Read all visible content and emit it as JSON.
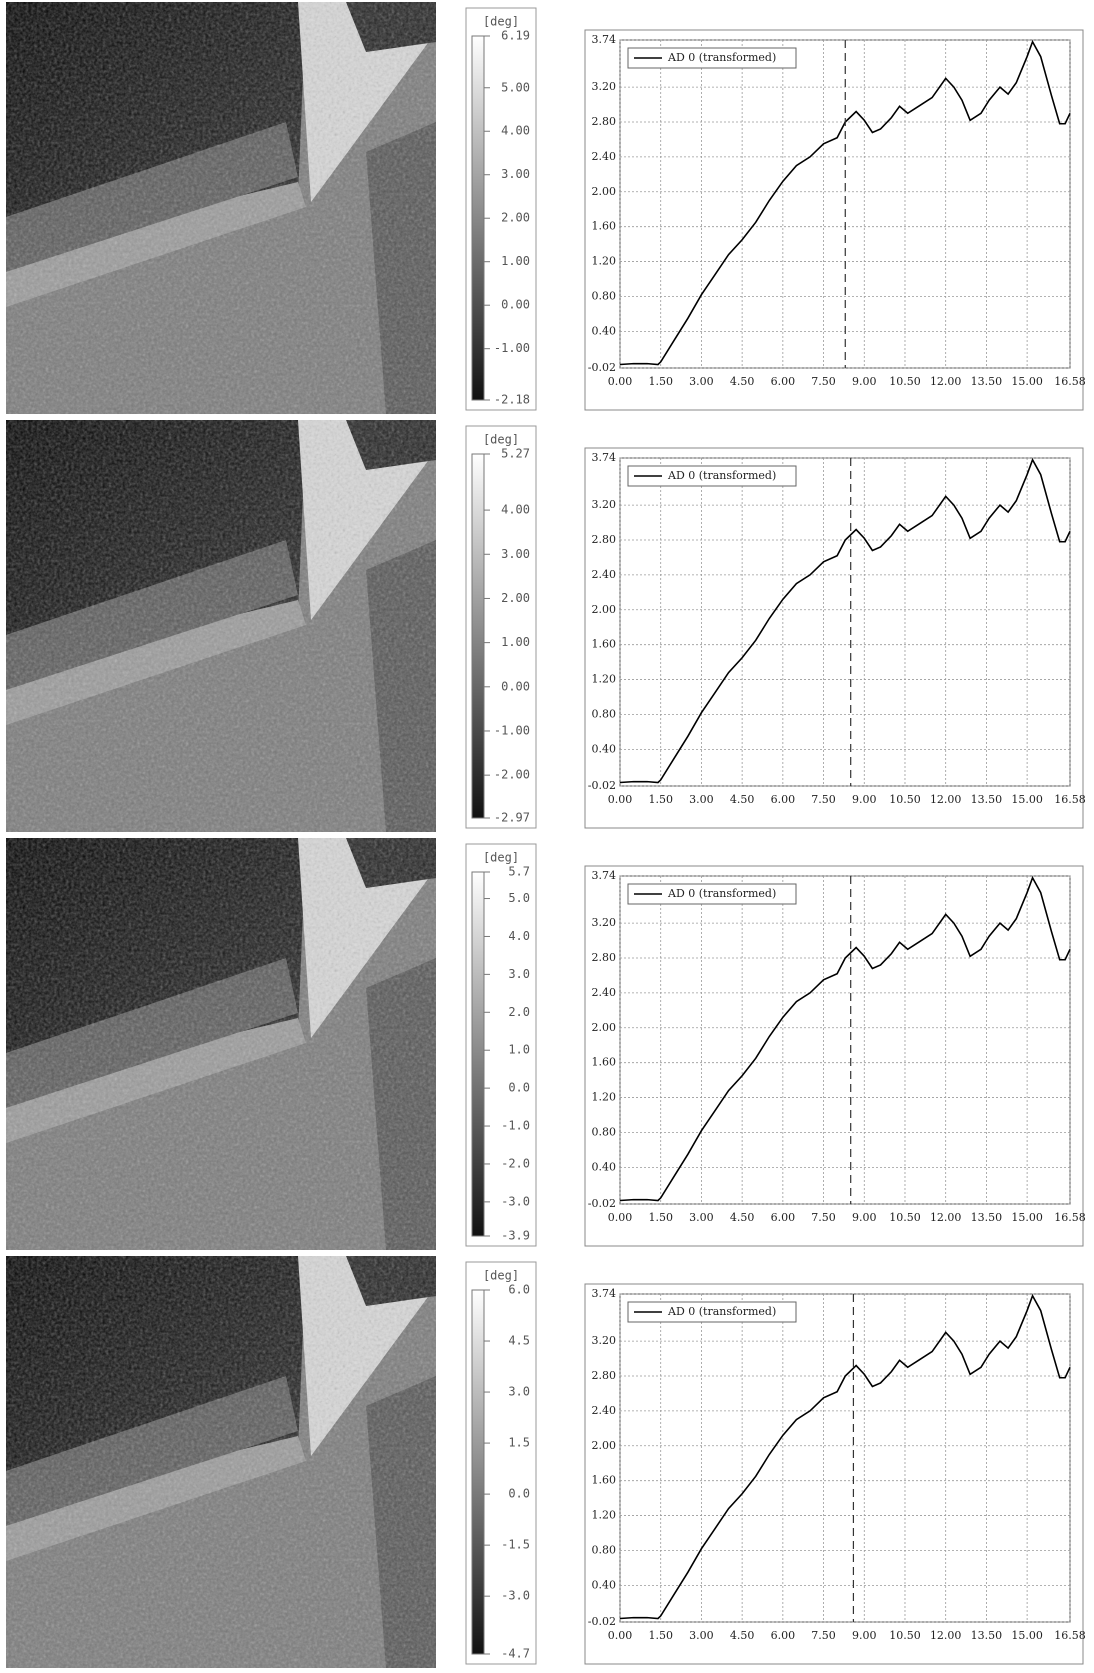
{
  "chart_data": [
    {
      "type": "colorbar",
      "title": "[deg]",
      "ylim": [
        -2.18,
        6.19
      ],
      "yticks": [
        6.19,
        {
          "value": 5,
          "label": "5.00"
        },
        {
          "value": 4,
          "label": "4.00"
        },
        {
          "value": 3,
          "label": "3.00"
        },
        {
          "value": 2,
          "label": "2.00"
        },
        {
          "value": 1,
          "label": "1.00"
        },
        {
          "value": 0,
          "label": "0.00"
        },
        {
          "value": -1,
          "label": "-1.00"
        },
        -2.18
      ]
    },
    {
      "type": "line",
      "x": [
        0,
        0.5,
        1,
        1.4,
        1.5,
        2,
        2.5,
        3,
        3.5,
        4,
        4.5,
        5,
        5.5,
        6,
        6.5,
        7,
        7.5,
        8,
        8.3,
        8.7,
        9,
        9.3,
        9.6,
        10,
        10.3,
        10.6,
        11,
        11.5,
        12,
        12.3,
        12.6,
        12.9,
        13.3,
        13.6,
        14,
        14.3,
        14.6,
        15,
        15.2,
        15.5,
        15.9,
        16.2,
        16.4,
        16.58
      ],
      "series": [
        {
          "name": "AD 0 (transformed)",
          "color": "#000000",
          "values": [
            0.02,
            0.03,
            0.03,
            0.02,
            0.05,
            0.3,
            0.55,
            0.82,
            1.05,
            1.28,
            1.45,
            1.65,
            1.9,
            2.12,
            2.3,
            2.4,
            2.55,
            2.62,
            2.8,
            2.92,
            2.82,
            2.68,
            2.72,
            2.85,
            2.98,
            2.9,
            2.98,
            3.08,
            3.3,
            3.2,
            3.05,
            2.82,
            2.9,
            3.05,
            3.2,
            3.12,
            3.25,
            3.55,
            3.72,
            3.55,
            3.1,
            2.78,
            2.78,
            2.9
          ]
        }
      ],
      "xlim": [
        0,
        16.58
      ],
      "xticks": [
        {
          "value": 0,
          "label": "0.00"
        },
        {
          "value": 1.5,
          "label": "1.50"
        },
        {
          "value": 3,
          "label": "3.00"
        },
        {
          "value": 4.5,
          "label": "4.50"
        },
        {
          "value": 6,
          "label": "6.00"
        },
        {
          "value": 7.5,
          "label": "7.50"
        },
        {
          "value": 9,
          "label": "9.00"
        },
        {
          "value": 10.5,
          "label": "10.50"
        },
        {
          "value": 12,
          "label": "12.00"
        },
        {
          "value": 13.5,
          "label": "13.50"
        },
        {
          "value": 15,
          "label": "15.00"
        },
        16.58
      ],
      "ylim": [
        -0.02,
        3.74
      ],
      "yticks": [
        -0.02,
        {
          "value": 0.4,
          "label": "0.40"
        },
        {
          "value": 0.8,
          "label": "0.80"
        },
        {
          "value": 1.2,
          "label": "1.20"
        },
        {
          "value": 1.6,
          "label": "1.60"
        },
        {
          "value": 2,
          "label": "2.00"
        },
        {
          "value": 2.4,
          "label": "2.40"
        },
        {
          "value": 2.8,
          "label": "2.80"
        },
        {
          "value": 3.2,
          "label": "3.20"
        },
        3.74
      ],
      "grid": true,
      "legend": "upper left",
      "marker_x": 8.3
    },
    {
      "type": "colorbar",
      "title": "[deg]",
      "ylim": [
        -2.97,
        5.27
      ],
      "yticks": [
        5.27,
        {
          "value": 4,
          "label": "4.00"
        },
        {
          "value": 3,
          "label": "3.00"
        },
        {
          "value": 2,
          "label": "2.00"
        },
        {
          "value": 1,
          "label": "1.00"
        },
        {
          "value": 0,
          "label": "0.00"
        },
        {
          "value": -1,
          "label": "-1.00"
        },
        {
          "value": -2,
          "label": "-2.00"
        },
        -2.97
      ]
    },
    {
      "type": "line",
      "x": [
        0,
        0.5,
        1,
        1.4,
        1.5,
        2,
        2.5,
        3,
        3.5,
        4,
        4.5,
        5,
        5.5,
        6,
        6.5,
        7,
        7.5,
        8,
        8.3,
        8.7,
        9,
        9.3,
        9.6,
        10,
        10.3,
        10.6,
        11,
        11.5,
        12,
        12.3,
        12.6,
        12.9,
        13.3,
        13.6,
        14,
        14.3,
        14.6,
        15,
        15.2,
        15.5,
        15.9,
        16.2,
        16.4,
        16.58
      ],
      "series": [
        {
          "name": "AD 0 (transformed)",
          "color": "#000000",
          "values": [
            0.02,
            0.03,
            0.03,
            0.02,
            0.05,
            0.3,
            0.55,
            0.82,
            1.05,
            1.28,
            1.45,
            1.65,
            1.9,
            2.12,
            2.3,
            2.4,
            2.55,
            2.62,
            2.8,
            2.92,
            2.82,
            2.68,
            2.72,
            2.85,
            2.98,
            2.9,
            2.98,
            3.08,
            3.3,
            3.2,
            3.05,
            2.82,
            2.9,
            3.05,
            3.2,
            3.12,
            3.25,
            3.55,
            3.72,
            3.55,
            3.1,
            2.78,
            2.78,
            2.9
          ]
        }
      ],
      "xlim": [
        0,
        16.58
      ],
      "xticks": [
        {
          "value": 0,
          "label": "0.00"
        },
        {
          "value": 1.5,
          "label": "1.50"
        },
        {
          "value": 3,
          "label": "3.00"
        },
        {
          "value": 4.5,
          "label": "4.50"
        },
        {
          "value": 6,
          "label": "6.00"
        },
        {
          "value": 7.5,
          "label": "7.50"
        },
        {
          "value": 9,
          "label": "9.00"
        },
        {
          "value": 10.5,
          "label": "10.50"
        },
        {
          "value": 12,
          "label": "12.00"
        },
        {
          "value": 13.5,
          "label": "13.50"
        },
        {
          "value": 15,
          "label": "15.00"
        },
        16.58
      ],
      "ylim": [
        -0.02,
        3.74
      ],
      "yticks": [
        -0.02,
        {
          "value": 0.4,
          "label": "0.40"
        },
        {
          "value": 0.8,
          "label": "0.80"
        },
        {
          "value": 1.2,
          "label": "1.20"
        },
        {
          "value": 1.6,
          "label": "1.60"
        },
        {
          "value": 2,
          "label": "2.00"
        },
        {
          "value": 2.4,
          "label": "2.40"
        },
        {
          "value": 2.8,
          "label": "2.80"
        },
        {
          "value": 3.2,
          "label": "3.20"
        },
        3.74
      ],
      "grid": true,
      "legend": "upper left",
      "marker_x": 8.5
    },
    {
      "type": "colorbar",
      "title": "[deg]",
      "ylim": [
        -3.9,
        5.7
      ],
      "yticks": [
        5.7,
        {
          "value": 5,
          "label": "5.0"
        },
        {
          "value": 4,
          "label": "4.0"
        },
        {
          "value": 3,
          "label": "3.0"
        },
        {
          "value": 2,
          "label": "2.0"
        },
        {
          "value": 1,
          "label": "1.0"
        },
        {
          "value": 0,
          "label": "0.0"
        },
        {
          "value": -1,
          "label": "-1.0"
        },
        {
          "value": -2,
          "label": "-2.0"
        },
        {
          "value": -3,
          "label": "-3.0"
        },
        -3.9
      ]
    },
    {
      "type": "line",
      "x": [
        0,
        0.5,
        1,
        1.4,
        1.5,
        2,
        2.5,
        3,
        3.5,
        4,
        4.5,
        5,
        5.5,
        6,
        6.5,
        7,
        7.5,
        8,
        8.3,
        8.7,
        9,
        9.3,
        9.6,
        10,
        10.3,
        10.6,
        11,
        11.5,
        12,
        12.3,
        12.6,
        12.9,
        13.3,
        13.6,
        14,
        14.3,
        14.6,
        15,
        15.2,
        15.5,
        15.9,
        16.2,
        16.4,
        16.58
      ],
      "series": [
        {
          "name": "AD 0 (transformed)",
          "color": "#000000",
          "values": [
            0.02,
            0.03,
            0.03,
            0.02,
            0.05,
            0.3,
            0.55,
            0.82,
            1.05,
            1.28,
            1.45,
            1.65,
            1.9,
            2.12,
            2.3,
            2.4,
            2.55,
            2.62,
            2.8,
            2.92,
            2.82,
            2.68,
            2.72,
            2.85,
            2.98,
            2.9,
            2.98,
            3.08,
            3.3,
            3.2,
            3.05,
            2.82,
            2.9,
            3.05,
            3.2,
            3.12,
            3.25,
            3.55,
            3.72,
            3.55,
            3.1,
            2.78,
            2.78,
            2.9
          ]
        }
      ],
      "xlim": [
        0,
        16.58
      ],
      "xticks": [
        {
          "value": 0,
          "label": "0.00"
        },
        {
          "value": 1.5,
          "label": "1.50"
        },
        {
          "value": 3,
          "label": "3.00"
        },
        {
          "value": 4.5,
          "label": "4.50"
        },
        {
          "value": 6,
          "label": "6.00"
        },
        {
          "value": 7.5,
          "label": "7.50"
        },
        {
          "value": 9,
          "label": "9.00"
        },
        {
          "value": 10.5,
          "label": "10.50"
        },
        {
          "value": 12,
          "label": "12.00"
        },
        {
          "value": 13.5,
          "label": "13.50"
        },
        {
          "value": 15,
          "label": "15.00"
        },
        16.58
      ],
      "ylim": [
        -0.02,
        3.74
      ],
      "yticks": [
        -0.02,
        {
          "value": 0.4,
          "label": "0.40"
        },
        {
          "value": 0.8,
          "label": "0.80"
        },
        {
          "value": 1.2,
          "label": "1.20"
        },
        {
          "value": 1.6,
          "label": "1.60"
        },
        {
          "value": 2,
          "label": "2.00"
        },
        {
          "value": 2.4,
          "label": "2.40"
        },
        {
          "value": 2.8,
          "label": "2.80"
        },
        {
          "value": 3.2,
          "label": "3.20"
        },
        3.74
      ],
      "grid": true,
      "legend": "upper left",
      "marker_x": 8.5
    },
    {
      "type": "colorbar",
      "title": "[deg]",
      "ylim": [
        -4.7,
        6.0
      ],
      "yticks": [
        {
          "value": 6,
          "label": "6.0"
        },
        4.5,
        {
          "value": 3,
          "label": "3.0"
        },
        1.5,
        {
          "value": 0,
          "label": "0.0"
        },
        -1.5,
        {
          "value": -3,
          "label": "-3.0"
        },
        -4.7
      ]
    },
    {
      "type": "line",
      "x": [
        0,
        0.5,
        1,
        1.4,
        1.5,
        2,
        2.5,
        3,
        3.5,
        4,
        4.5,
        5,
        5.5,
        6,
        6.5,
        7,
        7.5,
        8,
        8.3,
        8.7,
        9,
        9.3,
        9.6,
        10,
        10.3,
        10.6,
        11,
        11.5,
        12,
        12.3,
        12.6,
        12.9,
        13.3,
        13.6,
        14,
        14.3,
        14.6,
        15,
        15.2,
        15.5,
        15.9,
        16.2,
        16.4,
        16.58
      ],
      "series": [
        {
          "name": "AD 0 (transformed)",
          "color": "#000000",
          "values": [
            0.02,
            0.03,
            0.03,
            0.02,
            0.05,
            0.3,
            0.55,
            0.82,
            1.05,
            1.28,
            1.45,
            1.65,
            1.9,
            2.12,
            2.3,
            2.4,
            2.55,
            2.62,
            2.8,
            2.92,
            2.82,
            2.68,
            2.72,
            2.85,
            2.98,
            2.9,
            2.98,
            3.08,
            3.3,
            3.2,
            3.05,
            2.82,
            2.9,
            3.05,
            3.2,
            3.12,
            3.25,
            3.55,
            3.72,
            3.55,
            3.1,
            2.78,
            2.78,
            2.9
          ]
        }
      ],
      "xlim": [
        0,
        16.58
      ],
      "xticks": [
        {
          "value": 0,
          "label": "0.00"
        },
        {
          "value": 1.5,
          "label": "1.50"
        },
        {
          "value": 3,
          "label": "3.00"
        },
        {
          "value": 4.5,
          "label": "4.50"
        },
        {
          "value": 6,
          "label": "6.00"
        },
        {
          "value": 7.5,
          "label": "7.50"
        },
        {
          "value": 9,
          "label": "9.00"
        },
        {
          "value": 10.5,
          "label": "10.50"
        },
        {
          "value": 12,
          "label": "12.00"
        },
        {
          "value": 13.5,
          "label": "13.50"
        },
        {
          "value": 15,
          "label": "15.00"
        },
        16.58
      ],
      "ylim": [
        -0.02,
        3.74
      ],
      "yticks": [
        -0.02,
        {
          "value": 0.4,
          "label": "0.40"
        },
        {
          "value": 0.8,
          "label": "0.80"
        },
        {
          "value": 1.2,
          "label": "1.20"
        },
        {
          "value": 1.6,
          "label": "1.60"
        },
        {
          "value": 2,
          "label": "2.00"
        },
        {
          "value": 2.4,
          "label": "2.40"
        },
        {
          "value": 2.8,
          "label": "2.80"
        },
        {
          "value": 3.2,
          "label": "3.20"
        },
        3.74
      ],
      "grid": true,
      "legend": "upper left",
      "marker_x": 8.6
    }
  ]
}
